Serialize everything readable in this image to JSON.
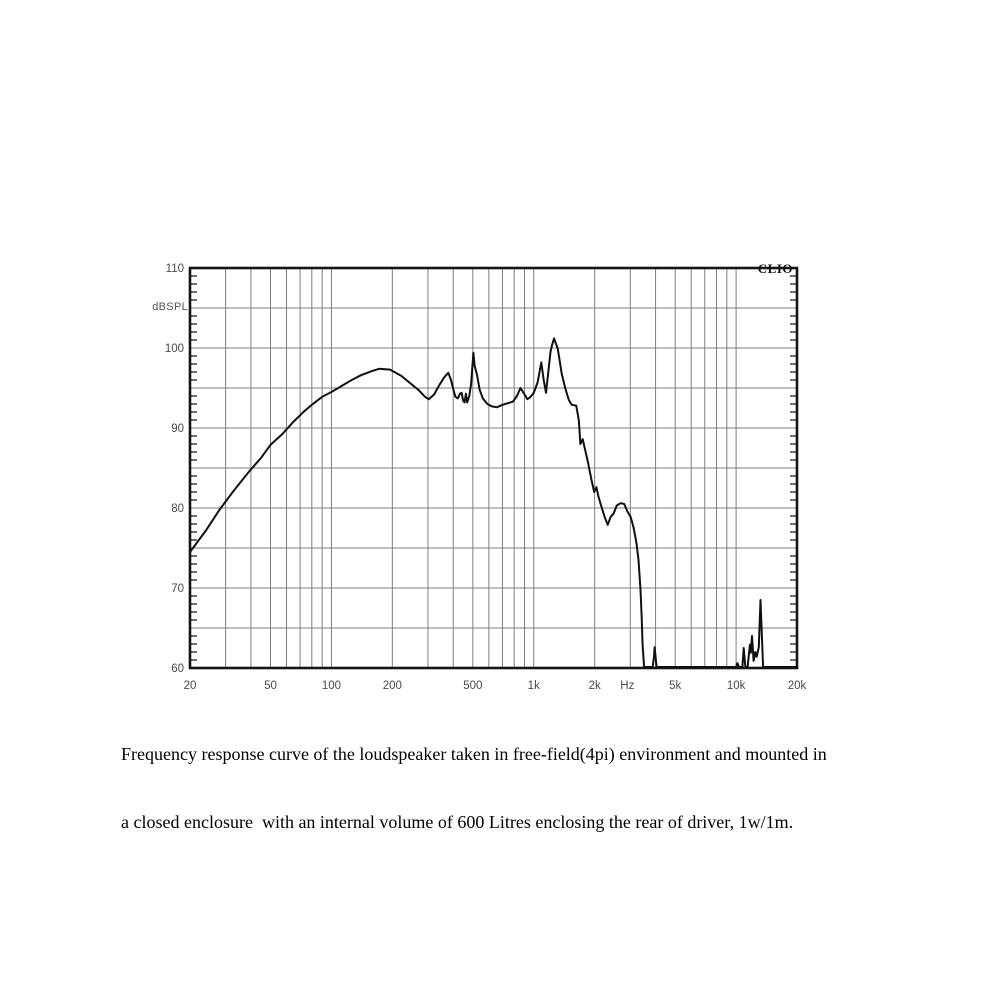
{
  "chart": {
    "brand": "CLIO",
    "y_axis": {
      "unit": "dBSPL",
      "tick_labels": [
        110,
        100,
        90,
        80,
        70,
        60
      ],
      "min": 60,
      "max": 110,
      "grid_step": 5,
      "minor_tick_step": 1
    },
    "x_axis": {
      "unit": "Hz",
      "unit_position": 2900,
      "scale": "log",
      "min": 20,
      "max": 20000,
      "tick_labels": [
        {
          "label": "20",
          "f": 20
        },
        {
          "label": "50",
          "f": 50
        },
        {
          "label": "100",
          "f": 100
        },
        {
          "label": "200",
          "f": 200
        },
        {
          "label": "500",
          "f": 500
        },
        {
          "label": "1k",
          "f": 1000
        },
        {
          "label": "2k",
          "f": 2000
        },
        {
          "label": "5k",
          "f": 5000
        },
        {
          "label": "10k",
          "f": 10000
        },
        {
          "label": "20k",
          "f": 20000
        }
      ]
    },
    "colors": {
      "curve": "#101010",
      "grid": "#7e7e7e",
      "frame": "#151515",
      "tick_label": "#4a4a4a",
      "caption": "#000000"
    }
  },
  "chart_data": {
    "type": "line",
    "title": "",
    "xlabel": "Hz",
    "ylabel": "dBSPL",
    "x_scale": "log",
    "x_range": [
      20,
      20000
    ],
    "y_range": [
      60,
      110
    ],
    "grid": "on",
    "legend": "none",
    "series": [
      {
        "name": "Frequency response (dBSPL)",
        "points": [
          [
            20,
            74.5
          ],
          [
            24,
            77.2
          ],
          [
            28,
            79.8
          ],
          [
            33,
            82.2
          ],
          [
            39,
            84.5
          ],
          [
            45,
            86.3
          ],
          [
            50,
            87.9
          ],
          [
            57,
            89.2
          ],
          [
            65,
            90.8
          ],
          [
            72,
            91.9
          ],
          [
            80,
            92.9
          ],
          [
            90,
            93.9
          ],
          [
            100,
            94.5
          ],
          [
            113,
            95.3
          ],
          [
            126,
            96.0
          ],
          [
            140,
            96.6
          ],
          [
            158,
            97.1
          ],
          [
            172,
            97.4
          ],
          [
            195,
            97.3
          ],
          [
            222,
            96.5
          ],
          [
            245,
            95.6
          ],
          [
            268,
            94.8
          ],
          [
            290,
            93.9
          ],
          [
            303,
            93.6
          ],
          [
            322,
            94.2
          ],
          [
            340,
            95.3
          ],
          [
            360,
            96.3
          ],
          [
            378,
            96.9
          ],
          [
            390,
            96.0
          ],
          [
            400,
            94.9
          ],
          [
            410,
            93.9
          ],
          [
            422,
            93.7
          ],
          [
            432,
            94.3
          ],
          [
            440,
            94.4
          ],
          [
            448,
            93.4
          ],
          [
            455,
            93.2
          ],
          [
            462,
            94.3
          ],
          [
            469,
            93.2
          ],
          [
            480,
            94.0
          ],
          [
            490,
            95.5
          ],
          [
            503,
            99.4
          ],
          [
            510,
            97.8
          ],
          [
            525,
            96.6
          ],
          [
            540,
            94.8
          ],
          [
            560,
            93.7
          ],
          [
            590,
            93.0
          ],
          [
            620,
            92.7
          ],
          [
            660,
            92.6
          ],
          [
            700,
            92.9
          ],
          [
            745,
            93.1
          ],
          [
            790,
            93.3
          ],
          [
            825,
            94.0
          ],
          [
            860,
            95.0
          ],
          [
            895,
            94.3
          ],
          [
            930,
            93.6
          ],
          [
            965,
            93.9
          ],
          [
            1000,
            94.4
          ],
          [
            1045,
            95.7
          ],
          [
            1090,
            98.2
          ],
          [
            1120,
            96.0
          ],
          [
            1150,
            94.4
          ],
          [
            1180,
            97.0
          ],
          [
            1210,
            99.5
          ],
          [
            1230,
            100.3
          ],
          [
            1260,
            101.2
          ],
          [
            1315,
            99.9
          ],
          [
            1375,
            96.8
          ],
          [
            1430,
            95.0
          ],
          [
            1490,
            93.5
          ],
          [
            1540,
            92.9
          ],
          [
            1620,
            92.8
          ],
          [
            1670,
            91.0
          ],
          [
            1700,
            88.0
          ],
          [
            1745,
            88.6
          ],
          [
            1790,
            87.4
          ],
          [
            1850,
            85.8
          ],
          [
            1930,
            83.5
          ],
          [
            1990,
            82.0
          ],
          [
            2040,
            82.6
          ],
          [
            2090,
            81.4
          ],
          [
            2165,
            80.1
          ],
          [
            2240,
            78.9
          ],
          [
            2320,
            77.9
          ],
          [
            2400,
            78.9
          ],
          [
            2480,
            79.3
          ],
          [
            2570,
            80.3
          ],
          [
            2685,
            80.6
          ],
          [
            2800,
            80.5
          ],
          [
            2900,
            79.6
          ],
          [
            3010,
            78.9
          ],
          [
            3110,
            77.6
          ],
          [
            3220,
            75.6
          ],
          [
            3295,
            73.5
          ],
          [
            3370,
            69.8
          ],
          [
            3410,
            66.6
          ],
          [
            3450,
            62.9
          ],
          [
            3510,
            60
          ],
          [
            3870,
            60
          ],
          [
            3930,
            61.4
          ],
          [
            3955,
            62.6
          ],
          [
            4045,
            60
          ],
          [
            10000,
            60
          ],
          [
            10150,
            60.6
          ],
          [
            10350,
            60
          ],
          [
            10750,
            60
          ],
          [
            10900,
            62.5
          ],
          [
            11100,
            60.2
          ],
          [
            11400,
            60
          ],
          [
            11700,
            62.9
          ],
          [
            11820,
            61.9
          ],
          [
            11980,
            64.0
          ],
          [
            12200,
            60.9
          ],
          [
            12450,
            62.0
          ],
          [
            12650,
            61.4
          ],
          [
            12950,
            62.6
          ],
          [
            13200,
            68.5
          ],
          [
            13600,
            60
          ],
          [
            20000,
            60
          ]
        ]
      }
    ]
  },
  "caption": {
    "line1": "Frequency response curve of the loudspeaker taken in free-field(4pi) environment and mounted in",
    "line2": "a closed enclosure  with an internal volume of 600 Litres enclosing the rear of driver, 1w/1m."
  }
}
